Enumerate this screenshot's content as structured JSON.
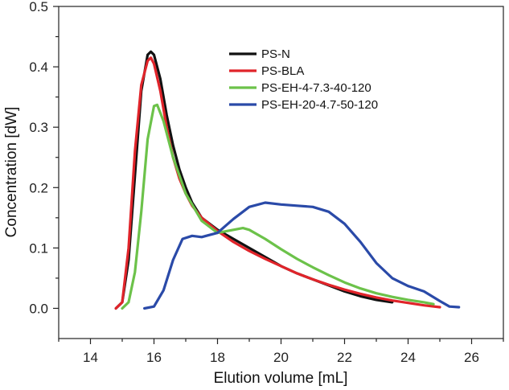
{
  "chart_data": {
    "type": "line",
    "title": "",
    "xlabel": "Elution volume [mL]",
    "ylabel": "Concentration [dW]",
    "xlim": [
      13,
      27
    ],
    "ylim": [
      -0.05,
      0.5
    ],
    "xticks": [
      14,
      16,
      18,
      20,
      22,
      24,
      26
    ],
    "xtick_labels": [
      "14",
      "16",
      "18",
      "20",
      "22",
      "24",
      "26"
    ],
    "yticks": [
      0.0,
      0.1,
      0.2,
      0.3,
      0.4,
      0.5
    ],
    "ytick_labels": [
      "0.0",
      "0.1",
      "0.2",
      "0.3",
      "0.4",
      "0.5"
    ],
    "grid": false,
    "legend_position": "top-right",
    "series": [
      {
        "name": "PS-N",
        "color": "#111111",
        "x": [
          14.8,
          15.0,
          15.2,
          15.4,
          15.6,
          15.8,
          15.9,
          16.0,
          16.2,
          16.4,
          16.6,
          16.8,
          17.0,
          17.2,
          17.5,
          18.0,
          18.5,
          19.0,
          19.5,
          20.0,
          20.5,
          21.0,
          21.5,
          22.0,
          22.5,
          23.0,
          23.5
        ],
        "y": [
          0.0,
          0.01,
          0.08,
          0.22,
          0.36,
          0.42,
          0.425,
          0.42,
          0.38,
          0.32,
          0.27,
          0.23,
          0.2,
          0.175,
          0.15,
          0.13,
          0.115,
          0.1,
          0.085,
          0.07,
          0.058,
          0.048,
          0.038,
          0.028,
          0.02,
          0.014,
          0.01
        ]
      },
      {
        "name": "PS-BLA",
        "color": "#e0242a",
        "x": [
          14.8,
          15.0,
          15.2,
          15.4,
          15.6,
          15.8,
          15.9,
          16.0,
          16.2,
          16.4,
          16.6,
          16.8,
          17.0,
          17.2,
          17.5,
          18.0,
          18.5,
          19.0,
          19.5,
          20.0,
          20.5,
          21.0,
          21.5,
          22.0,
          22.5,
          23.0,
          23.5,
          24.0,
          24.5,
          25.0
        ],
        "y": [
          0.0,
          0.01,
          0.1,
          0.26,
          0.37,
          0.41,
          0.415,
          0.405,
          0.36,
          0.3,
          0.25,
          0.215,
          0.19,
          0.17,
          0.15,
          0.128,
          0.11,
          0.095,
          0.082,
          0.07,
          0.058,
          0.048,
          0.039,
          0.031,
          0.024,
          0.018,
          0.013,
          0.009,
          0.005,
          0.002
        ]
      },
      {
        "name": "PS-EH-4-7.3-40-120",
        "color": "#6cc24a",
        "x": [
          15.0,
          15.2,
          15.4,
          15.6,
          15.8,
          16.0,
          16.1,
          16.3,
          16.6,
          17.0,
          17.5,
          18.0,
          18.5,
          18.8,
          19.0,
          19.5,
          20.0,
          20.5,
          21.0,
          21.5,
          22.0,
          22.5,
          23.0,
          23.5,
          24.0,
          24.5,
          24.8
        ],
        "y": [
          0.0,
          0.01,
          0.06,
          0.16,
          0.28,
          0.335,
          0.337,
          0.31,
          0.25,
          0.19,
          0.145,
          0.125,
          0.13,
          0.133,
          0.13,
          0.115,
          0.098,
          0.082,
          0.068,
          0.055,
          0.043,
          0.033,
          0.025,
          0.019,
          0.014,
          0.01,
          0.007
        ]
      },
      {
        "name": "PS-EH-20-4.7-50-120",
        "color": "#2a4aa8",
        "x": [
          15.7,
          16.0,
          16.3,
          16.6,
          16.9,
          17.2,
          17.5,
          18.0,
          18.5,
          19.0,
          19.5,
          20.0,
          20.5,
          21.0,
          21.5,
          22.0,
          22.5,
          23.0,
          23.5,
          24.0,
          24.5,
          25.0,
          25.3,
          25.6
        ],
        "y": [
          0.0,
          0.003,
          0.03,
          0.08,
          0.115,
          0.12,
          0.118,
          0.125,
          0.148,
          0.168,
          0.175,
          0.172,
          0.17,
          0.168,
          0.16,
          0.14,
          0.11,
          0.075,
          0.05,
          0.037,
          0.028,
          0.012,
          0.003,
          0.002
        ]
      }
    ]
  }
}
